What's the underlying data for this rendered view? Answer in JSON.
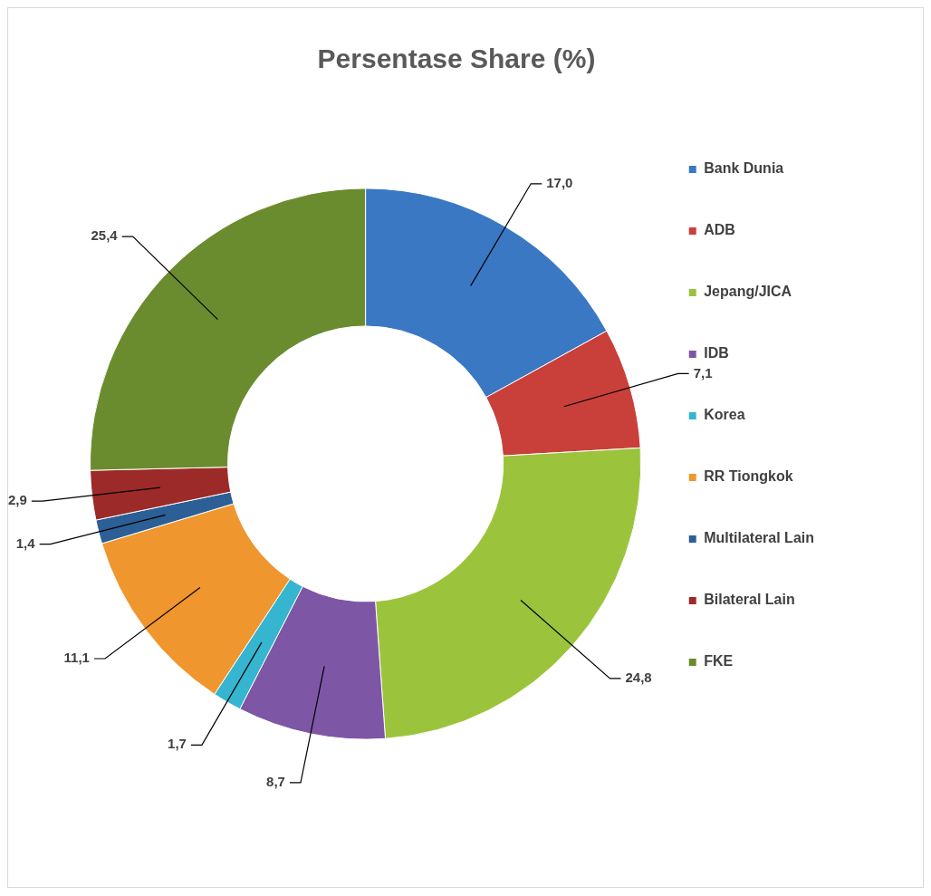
{
  "chart_data": {
    "type": "donut",
    "title": "Persentase Share (%)",
    "categories": [
      "Bank Dunia",
      "ADB",
      "Jepang/JICA",
      "IDB",
      "Korea",
      "RR Tiongkok",
      "Multilateral Lain",
      "Bilateral Lain",
      "FKE"
    ],
    "values": [
      17.0,
      7.1,
      24.8,
      8.7,
      1.7,
      11.1,
      1.4,
      2.9,
      25.4
    ],
    "value_labels": [
      "17,0",
      "7,1",
      "24,8",
      "8,7",
      "1,7",
      "11,1",
      "1,4",
      "2,9",
      "25,4"
    ],
    "colors": [
      "#3a78c4",
      "#c9403a",
      "#9bc43c",
      "#7e56a6",
      "#36b5d0",
      "#f0962e",
      "#2c5f96",
      "#9c2a28",
      "#6b8c2e"
    ],
    "legend": "right"
  }
}
